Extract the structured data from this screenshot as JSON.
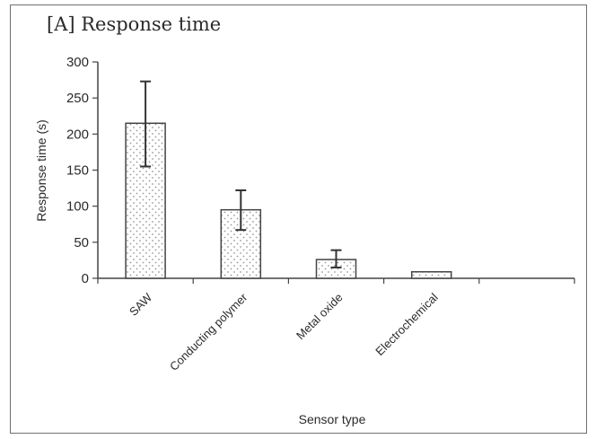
{
  "chart_data": {
    "type": "bar",
    "title": "[A] Response time",
    "xlabel": "Sensor type",
    "ylabel": "Response time (s)",
    "categories": [
      "SAW",
      "Conducting polymer",
      "Metal oxide",
      "Electrochemical",
      ""
    ],
    "values": [
      215,
      95,
      26,
      9,
      null
    ],
    "error_low": [
      155,
      67,
      15,
      null,
      null
    ],
    "error_high": [
      273,
      122,
      39,
      null,
      null
    ],
    "ylim": [
      0,
      300
    ],
    "yticks": [
      0,
      50,
      100,
      150,
      200,
      250,
      300
    ],
    "grid": false,
    "bar_fill": "dotted",
    "colors": {
      "bar_border": "#444444",
      "dot": "#9a9a9a",
      "axis": "#444444",
      "text": "#2a2a2a"
    }
  }
}
